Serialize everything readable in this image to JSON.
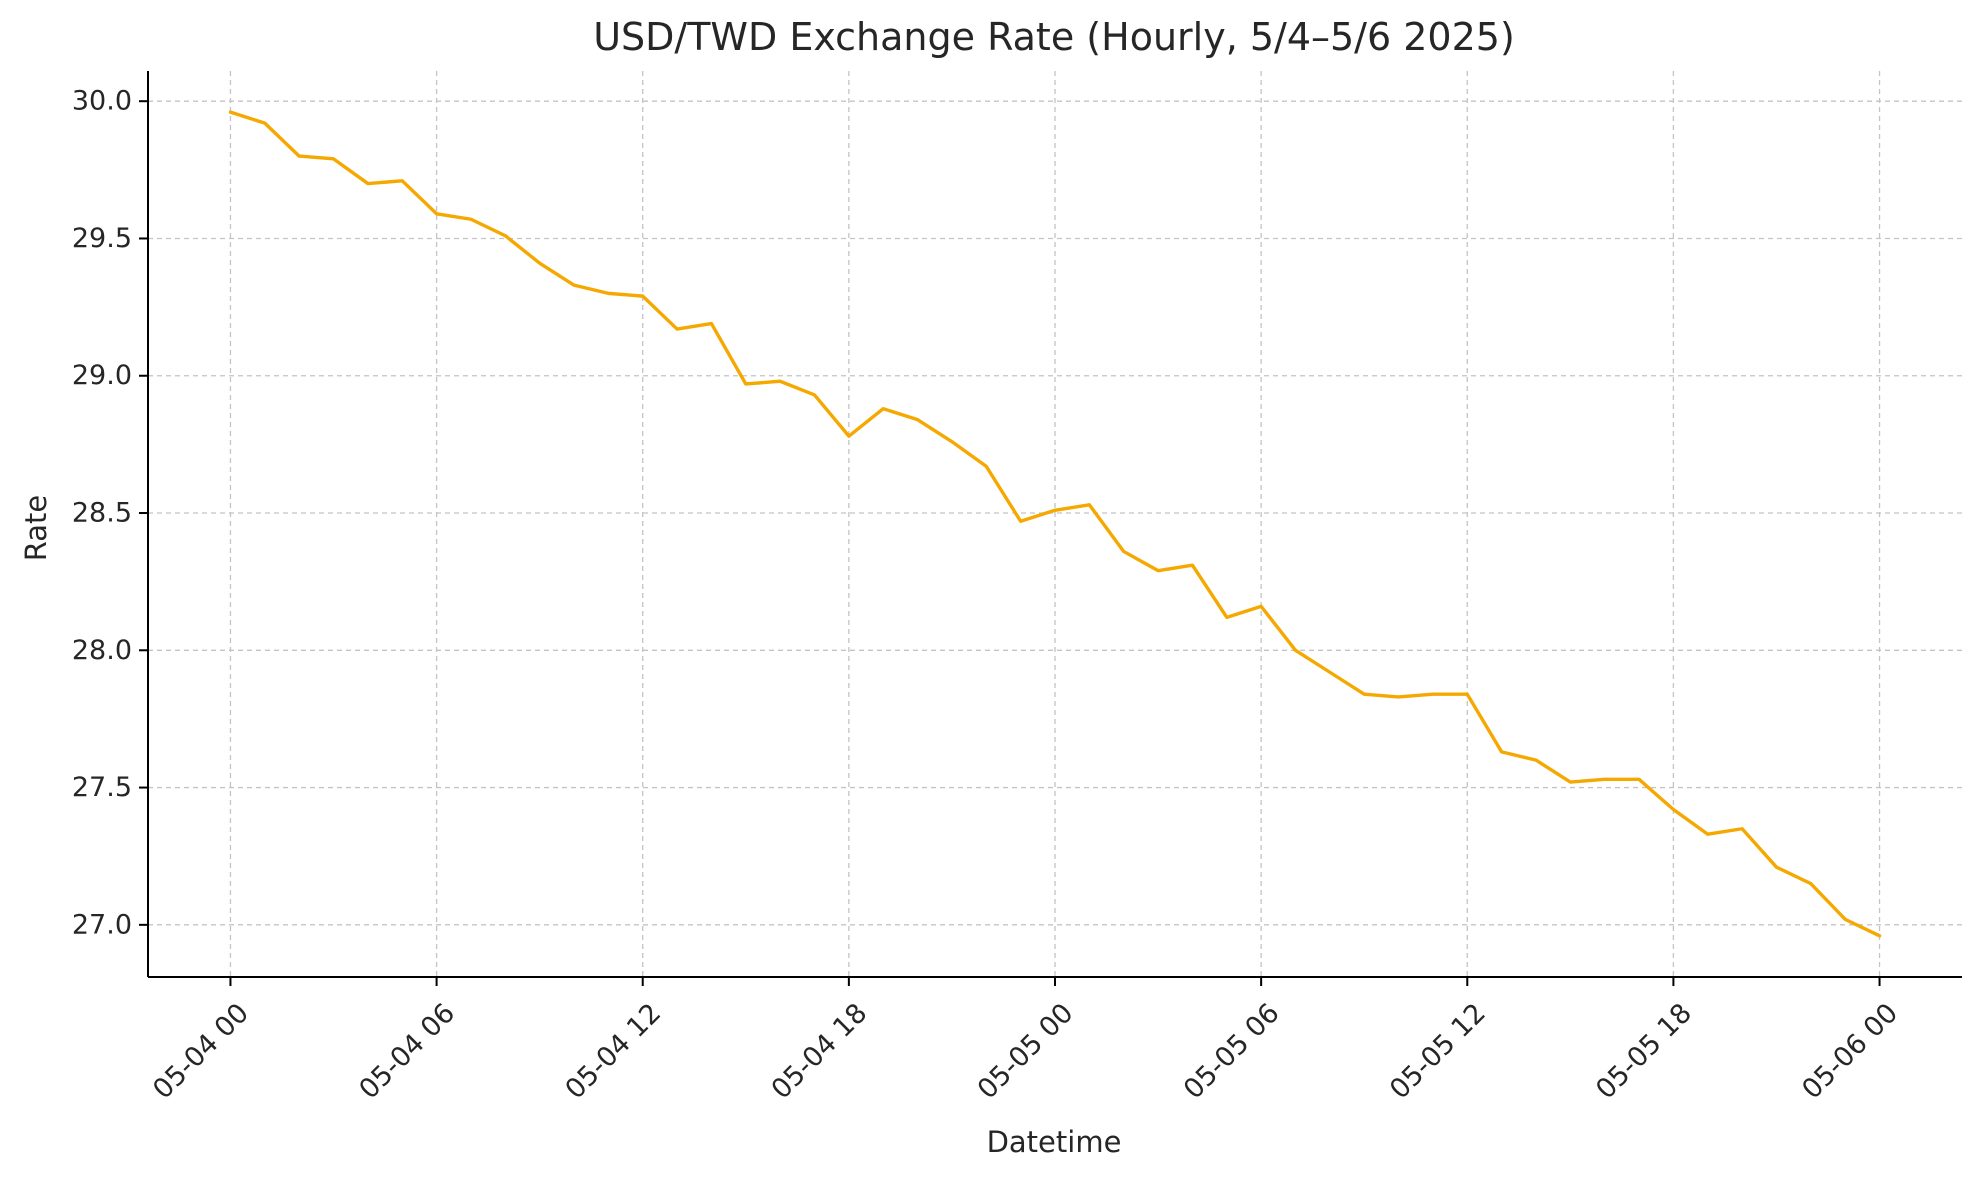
{
  "chart_data": {
    "type": "line",
    "title": "USD/TWD Exchange Rate (Hourly, 5/4–5/6 2025)",
    "xlabel": "Datetime",
    "ylabel": "Rate",
    "x_unit": "hour",
    "x_start": "2025-05-04 00:00",
    "x": [
      0,
      1,
      2,
      3,
      4,
      5,
      6,
      7,
      8,
      9,
      10,
      11,
      12,
      13,
      14,
      15,
      16,
      17,
      18,
      19,
      20,
      21,
      22,
      23,
      24,
      25,
      26,
      27,
      28,
      29,
      30,
      31,
      32,
      33,
      34,
      35,
      36,
      37,
      38,
      39,
      40,
      41,
      42,
      43,
      44,
      45,
      46,
      47,
      48
    ],
    "xticks": [
      0,
      6,
      12,
      18,
      24,
      30,
      36,
      42,
      48
    ],
    "xtick_labels": [
      "05-04 00",
      "05-04 06",
      "05-04 12",
      "05-04 18",
      "05-05 00",
      "05-05 06",
      "05-05 12",
      "05-05 18",
      "05-06 00"
    ],
    "xlim": [
      -2.4,
      50.4
    ],
    "yticks": [
      27.0,
      27.5,
      28.0,
      28.5,
      29.0,
      29.5,
      30.0
    ],
    "ytick_labels": [
      "27.0",
      "27.5",
      "28.0",
      "28.5",
      "29.0",
      "29.5",
      "30.0"
    ],
    "ylim": [
      26.81,
      30.11
    ],
    "grid": true,
    "series": [
      {
        "color": "#f5a800",
        "values": [
          29.96,
          29.92,
          29.8,
          29.79,
          29.7,
          29.71,
          29.59,
          29.57,
          29.51,
          29.41,
          29.33,
          29.3,
          29.29,
          29.17,
          29.19,
          28.97,
          28.98,
          28.93,
          28.78,
          28.88,
          28.84,
          28.76,
          28.67,
          28.47,
          28.51,
          28.53,
          28.36,
          28.29,
          28.31,
          28.12,
          28.16,
          28.0,
          27.92,
          27.84,
          27.83,
          27.84,
          27.84,
          27.63,
          27.6,
          27.52,
          27.53,
          27.53,
          27.42,
          27.33,
          27.35,
          27.21,
          27.15,
          27.02,
          26.96
        ]
      }
    ]
  }
}
